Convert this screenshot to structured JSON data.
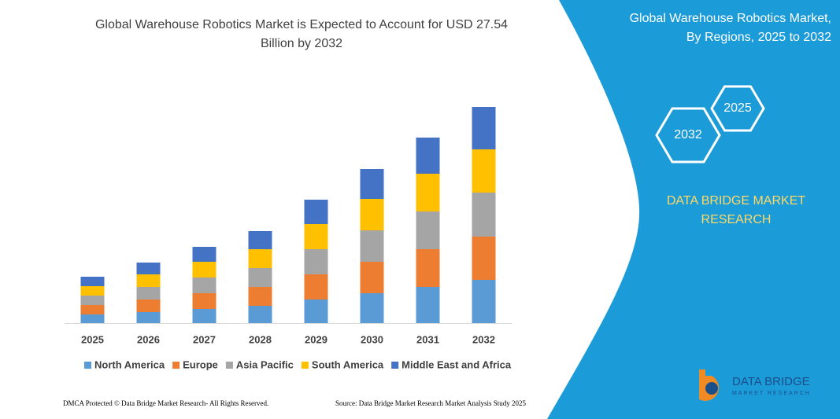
{
  "chart_data": {
    "type": "bar",
    "stacked": true,
    "title": [
      "Global Warehouse Robotics Market is Expected to Account for USD 27.54",
      "Billion by 2032"
    ],
    "categories": [
      "2025",
      "2026",
      "2027",
      "2028",
      "2029",
      "2030",
      "2031",
      "2032"
    ],
    "series": [
      {
        "name": "North America",
        "color": "#5b9bd5",
        "values": [
          11,
          14,
          18,
          22,
          30,
          38,
          46,
          55
        ]
      },
      {
        "name": "Europe",
        "color": "#ed7d31",
        "values": [
          12,
          16,
          20,
          24,
          32,
          40,
          48,
          55
        ]
      },
      {
        "name": "Asia Pacific",
        "color": "#a5a5a5",
        "values": [
          12,
          16,
          20,
          24,
          32,
          40,
          48,
          56
        ]
      },
      {
        "name": "South America",
        "color": "#ffc000",
        "values": [
          12,
          16,
          20,
          24,
          32,
          40,
          48,
          55
        ]
      },
      {
        "name": "Middle East and Africa",
        "color": "#4472c4",
        "values": [
          12,
          15,
          19,
          23,
          31,
          38,
          46,
          54
        ]
      }
    ],
    "ylim": [
      0,
      280
    ],
    "legend": "bottom"
  },
  "panel": {
    "title": [
      "Global Warehouse Robotics Market,",
      "By Regions, 2025 to 2032"
    ],
    "hexagons": [
      "2025",
      "2032"
    ],
    "brand": [
      "DATA BRIDGE MARKET",
      "RESEARCH"
    ]
  },
  "logo": {
    "name": "DATA BRIDGE",
    "tagline": "MARKET RESEARCH"
  },
  "footer": {
    "left": "DMCA Protected © Data Bridge Market Research-  All Rights Reserved.",
    "right": "Source: Data Bridge Market Research  Market Analysis Study 2025"
  }
}
